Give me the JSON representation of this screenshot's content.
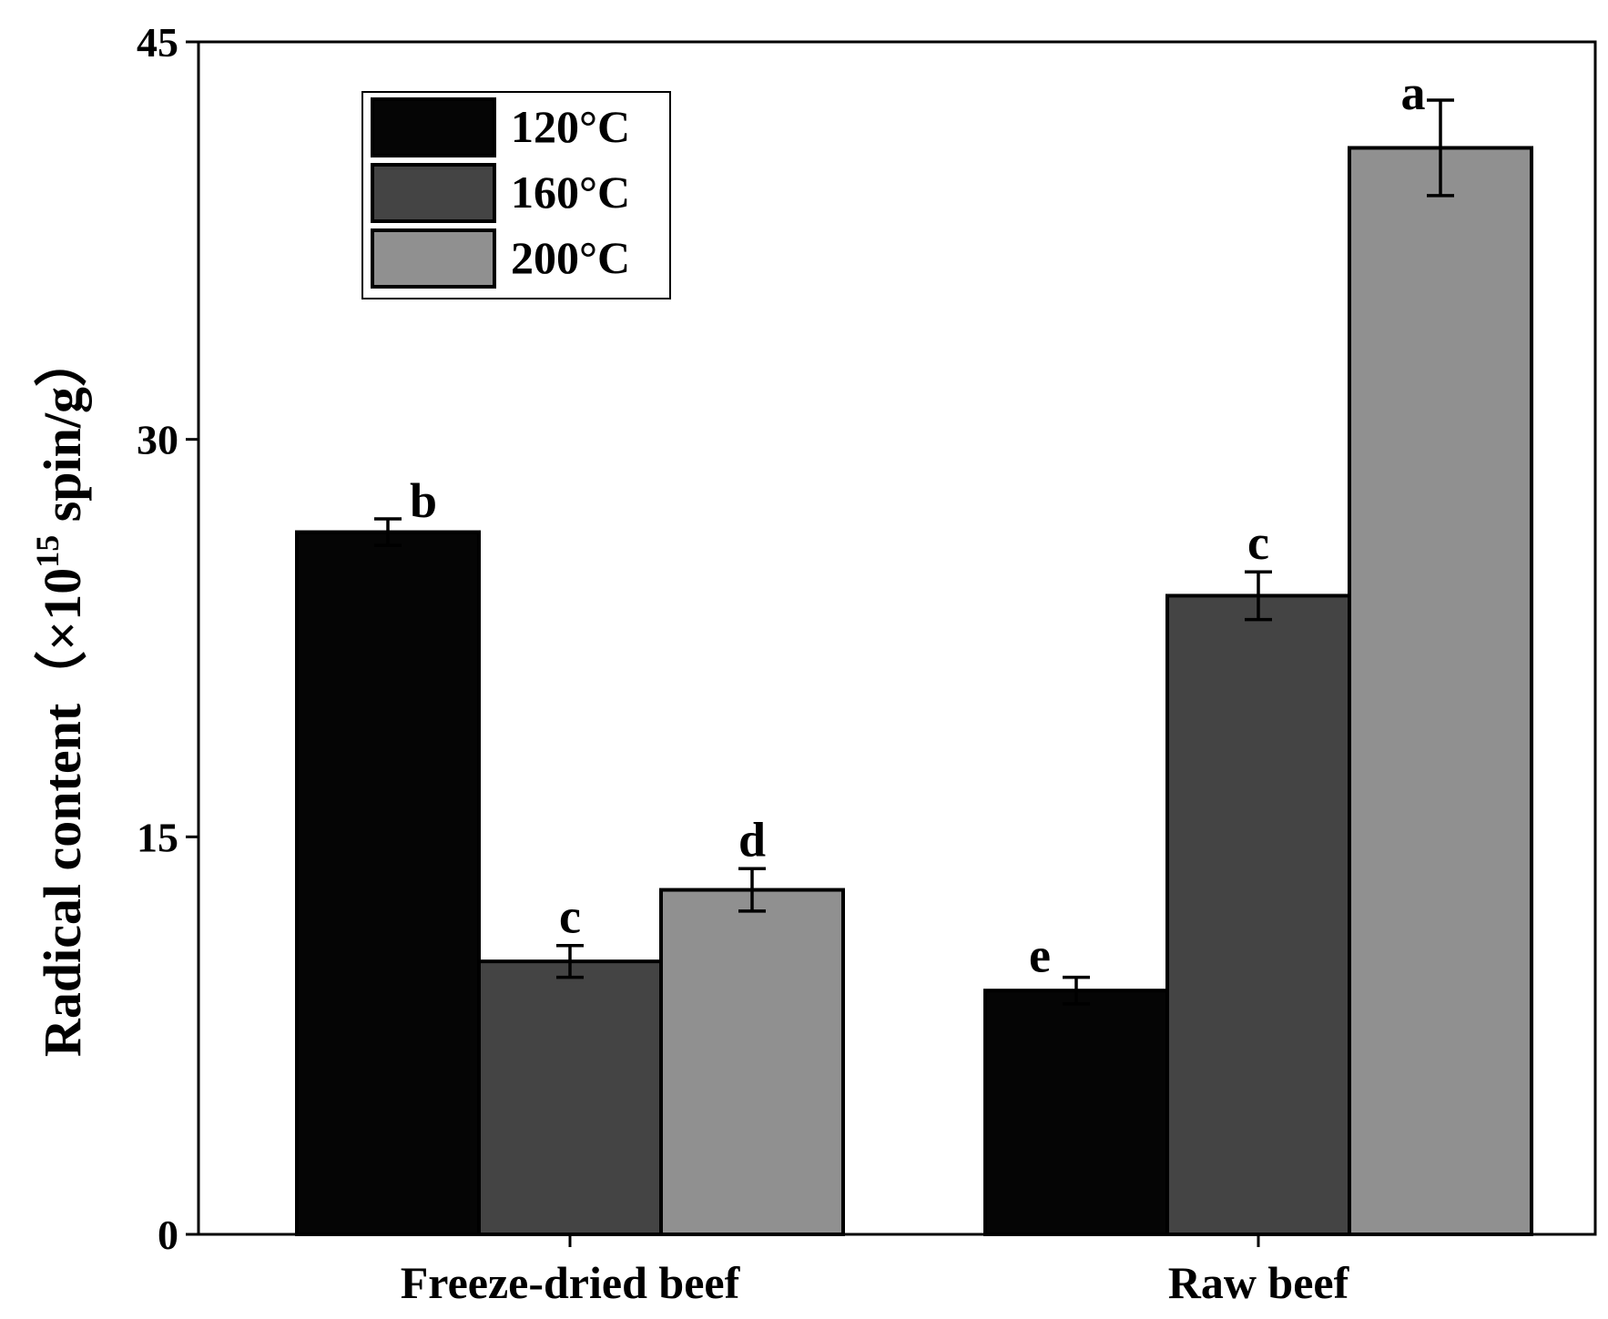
{
  "chart_data": {
    "type": "bar",
    "categories": [
      "Freeze-dried beef",
      "Raw beef"
    ],
    "series": [
      {
        "name": "120°C",
        "color": "#050505",
        "values": [
          26.5,
          9.2
        ],
        "errors": [
          0.5,
          0.5
        ],
        "labels": [
          "b",
          "e"
        ]
      },
      {
        "name": "160°C",
        "color": "#444444",
        "values": [
          10.3,
          24.1
        ],
        "errors": [
          0.6,
          0.9
        ],
        "labels": [
          "c",
          "c"
        ]
      },
      {
        "name": "200°C",
        "color": "#909090",
        "values": [
          13.0,
          41.0
        ],
        "errors": [
          0.8,
          1.8
        ],
        "labels": [
          "d",
          "a"
        ]
      }
    ],
    "ylabel_main": "Radical content（×10",
    "ylabel_exp": "15",
    "ylabel_tail": " spin/g）",
    "xlabel": "",
    "ylim": [
      0,
      45
    ],
    "yticks": [
      "0",
      "15",
      "30",
      "45"
    ],
    "legend_position": "top-left"
  }
}
